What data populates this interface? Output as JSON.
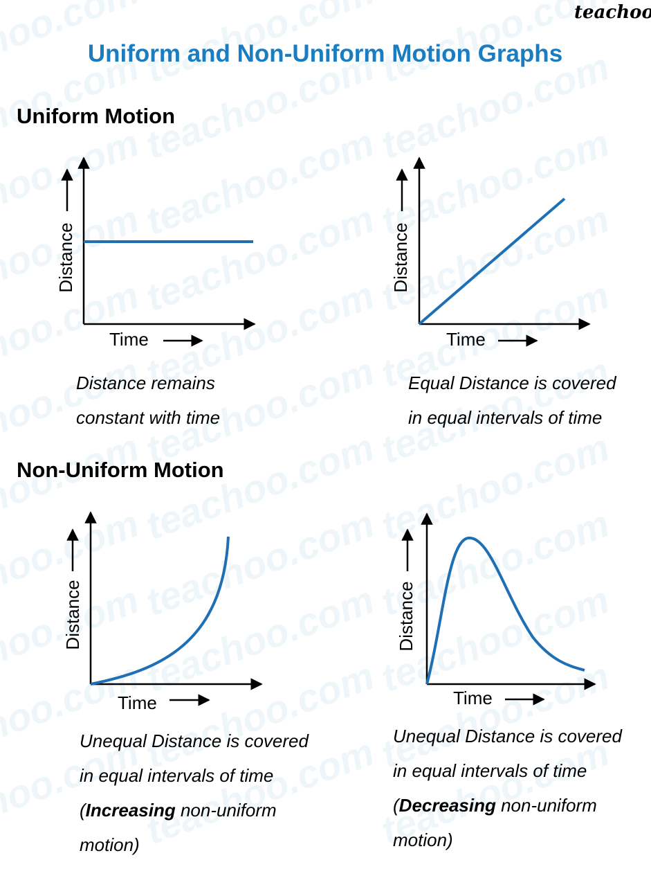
{
  "brand": "teachoo",
  "watermark": "teachoo.com",
  "title": "Uniform and Non-Uniform Motion Graphs",
  "sections": [
    {
      "heading": "Uniform Motion",
      "graphs": [
        {
          "y_label": "Distance",
          "x_label": "Time",
          "caption": [
            "Distance remains",
            "constant with time"
          ]
        },
        {
          "y_label": "Distance",
          "x_label": "Time",
          "caption": [
            "Equal Distance is covered",
            "in equal intervals of time"
          ]
        }
      ]
    },
    {
      "heading": "Non-Uniform Motion",
      "graphs": [
        {
          "y_label": "Distance",
          "x_label": "Time",
          "caption": [
            "Unequal Distance is covered",
            "in equal intervals of time"
          ],
          "note": {
            "open": "(",
            "bold": "Increasing",
            "rest": " non-uniform",
            "last": "motion)"
          }
        },
        {
          "y_label": "Distance",
          "x_label": "Time",
          "caption": [
            "Unequal Distance is covered",
            "in equal intervals of time"
          ],
          "note": {
            "open": "(",
            "bold": "Decreasing",
            "rest": " non-uniform",
            "last": "motion)"
          }
        }
      ]
    }
  ]
}
